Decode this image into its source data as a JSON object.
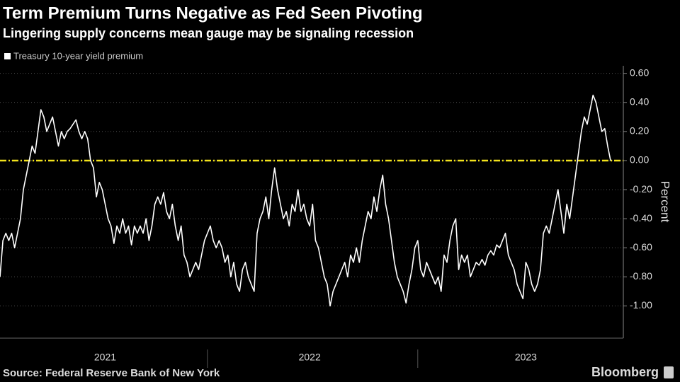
{
  "chart_data": {
    "type": "line",
    "title": "Term Premium Turns Negative as Fed Seen Pivoting",
    "subtitle": "Lingering supply concerns mean gauge may be signaling recession",
    "y_label": "Percent",
    "source": "Source: Federal Reserve Bank of New York",
    "brand": "Bloomberg",
    "categories": [
      null,
      null,
      null,
      null,
      null,
      null,
      null,
      null,
      null,
      null,
      null,
      null,
      null,
      null,
      null,
      null,
      null,
      null,
      null,
      null,
      null,
      null,
      null,
      null,
      null,
      null,
      null,
      null,
      null,
      null,
      null,
      null,
      null,
      null,
      null,
      null,
      "2021",
      null,
      null,
      null,
      null,
      null,
      null,
      null,
      null,
      null,
      null,
      null,
      null,
      null,
      null,
      null,
      null,
      null,
      null,
      null,
      null,
      null,
      null,
      null,
      null,
      null,
      null,
      null,
      null,
      null,
      null,
      null,
      null,
      null,
      null,
      null,
      null,
      null,
      null,
      null,
      null,
      null,
      null,
      null,
      null,
      null,
      null,
      null,
      null,
      null,
      null,
      null,
      null,
      null,
      null,
      null,
      null,
      null,
      null,
      null,
      null,
      null,
      null,
      null,
      null,
      null,
      null,
      null,
      null,
      null,
      "2022",
      null,
      null,
      null,
      null,
      null,
      null,
      null,
      null,
      null,
      null,
      null,
      null,
      null,
      null,
      null,
      null,
      null,
      null,
      null,
      null,
      null,
      null,
      null,
      null,
      null,
      null,
      null,
      null,
      null,
      null,
      null,
      null,
      null,
      null,
      null,
      null,
      null,
      null,
      null,
      null,
      null,
      null,
      null,
      null,
      null,
      null,
      null,
      null,
      null,
      null,
      null,
      null,
      null,
      null,
      null,
      null,
      null,
      null,
      null,
      null,
      null,
      null,
      null,
      null,
      null,
      null,
      null,
      null,
      null,
      null,
      null,
      null,
      null,
      "2023",
      null,
      null,
      null,
      null,
      null,
      null,
      null,
      null,
      null,
      null,
      null,
      null,
      null,
      null,
      null,
      null,
      null,
      null,
      null,
      null,
      null,
      null,
      null,
      null,
      null,
      null,
      null,
      null,
      null
    ],
    "series": [
      {
        "name": "Treasury 10-year yield premium",
        "color": "#ffffff",
        "values": [
          -0.8,
          -0.55,
          -0.5,
          -0.55,
          -0.5,
          -0.6,
          -0.5,
          -0.4,
          -0.2,
          -0.1,
          0.0,
          0.1,
          0.05,
          0.2,
          0.35,
          0.3,
          0.2,
          0.25,
          0.3,
          0.2,
          0.1,
          0.2,
          0.15,
          0.2,
          0.22,
          0.25,
          0.28,
          0.2,
          0.15,
          0.2,
          0.15,
          0.0,
          -0.05,
          -0.25,
          -0.15,
          -0.2,
          -0.3,
          -0.4,
          -0.45,
          -0.57,
          -0.45,
          -0.5,
          -0.4,
          -0.5,
          -0.45,
          -0.58,
          -0.45,
          -0.5,
          -0.45,
          -0.5,
          -0.4,
          -0.55,
          -0.45,
          -0.3,
          -0.25,
          -0.3,
          -0.22,
          -0.35,
          -0.4,
          -0.3,
          -0.45,
          -0.55,
          -0.45,
          -0.65,
          -0.7,
          -0.8,
          -0.75,
          -0.7,
          -0.75,
          -0.65,
          -0.55,
          -0.5,
          -0.45,
          -0.55,
          -0.6,
          -0.55,
          -0.6,
          -0.7,
          -0.65,
          -0.8,
          -0.7,
          -0.85,
          -0.9,
          -0.75,
          -0.7,
          -0.8,
          -0.85,
          -0.9,
          -0.5,
          -0.4,
          -0.35,
          -0.25,
          -0.4,
          -0.2,
          -0.05,
          -0.2,
          -0.3,
          -0.4,
          -0.35,
          -0.45,
          -0.3,
          -0.35,
          -0.2,
          -0.35,
          -0.3,
          -0.4,
          -0.45,
          -0.3,
          -0.55,
          -0.6,
          -0.7,
          -0.8,
          -0.85,
          -1.0,
          -0.9,
          -0.85,
          -0.8,
          -0.75,
          -0.7,
          -0.8,
          -0.65,
          -0.7,
          -0.6,
          -0.7,
          -0.55,
          -0.45,
          -0.35,
          -0.4,
          -0.25,
          -0.35,
          -0.2,
          -0.1,
          -0.3,
          -0.4,
          -0.55,
          -0.7,
          -0.8,
          -0.85,
          -0.9,
          -0.98,
          -0.85,
          -0.75,
          -0.6,
          -0.55,
          -0.75,
          -0.8,
          -0.7,
          -0.75,
          -0.8,
          -0.85,
          -0.8,
          -0.9,
          -0.65,
          -0.7,
          -0.55,
          -0.45,
          -0.4,
          -0.75,
          -0.65,
          -0.7,
          -0.65,
          -0.8,
          -0.75,
          -0.7,
          -0.72,
          -0.68,
          -0.72,
          -0.65,
          -0.62,
          -0.65,
          -0.58,
          -0.6,
          -0.55,
          -0.5,
          -0.65,
          -0.7,
          -0.75,
          -0.85,
          -0.9,
          -0.95,
          -0.7,
          -0.75,
          -0.85,
          -0.9,
          -0.85,
          -0.75,
          -0.5,
          -0.45,
          -0.5,
          -0.4,
          -0.3,
          -0.2,
          -0.35,
          -0.5,
          -0.3,
          -0.4,
          -0.25,
          -0.1,
          0.05,
          0.2,
          0.3,
          0.25,
          0.35,
          0.45,
          0.4,
          0.3,
          0.2,
          0.22,
          0.1,
          0.0
        ]
      }
    ],
    "reference_line": {
      "value": 0,
      "color": "#f2e21c"
    },
    "ylim": [
      -1.2,
      0.65
    ],
    "yticks": [
      {
        "value": 0.6,
        "label": "0.60"
      },
      {
        "value": 0.4,
        "label": "0.40"
      },
      {
        "value": 0.2,
        "label": "0.20"
      },
      {
        "value": 0,
        "label": "0.00"
      },
      {
        "value": -0.2,
        "label": "-0.20"
      },
      {
        "value": -0.4,
        "label": "-0.40"
      },
      {
        "value": -0.6,
        "label": "-0.60"
      },
      {
        "value": -0.8,
        "label": "-0.80"
      },
      {
        "value": -1,
        "label": "-1.00"
      }
    ],
    "grid": true
  }
}
